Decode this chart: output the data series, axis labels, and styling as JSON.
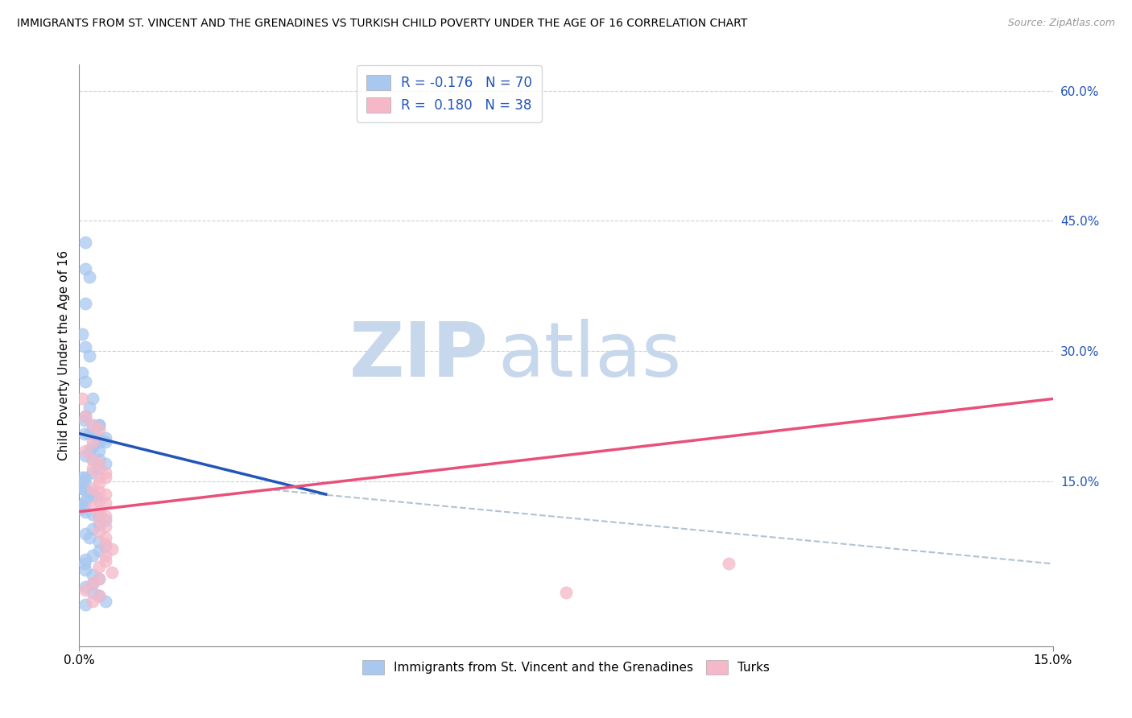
{
  "title": "IMMIGRANTS FROM ST. VINCENT AND THE GRENADINES VS TURKISH CHILD POVERTY UNDER THE AGE OF 16 CORRELATION CHART",
  "source": "Source: ZipAtlas.com",
  "ylabel": "Child Poverty Under the Age of 16",
  "xmin": 0.0,
  "xmax": 0.15,
  "ymin": -0.04,
  "ymax": 0.63,
  "ytick_labels_right": [
    "60.0%",
    "45.0%",
    "30.0%",
    "15.0%"
  ],
  "ytick_positions_right": [
    0.6,
    0.45,
    0.3,
    0.15
  ],
  "watermark_zip": "ZIP",
  "watermark_atlas": "atlas",
  "blue_color": "#A8C8F0",
  "pink_color": "#F5B8C8",
  "blue_line_color": "#2255BB",
  "pink_line_color": "#E8507A",
  "dashed_line_color": "#AABBCC",
  "blue_line": [
    [
      0.0,
      0.205
    ],
    [
      0.038,
      0.135
    ]
  ],
  "pink_line": [
    [
      0.0,
      0.115
    ],
    [
      0.15,
      0.245
    ]
  ],
  "dashed_line": [
    [
      0.03,
      0.14
    ],
    [
      0.15,
      0.055
    ]
  ],
  "blue_scatter": [
    [
      0.001,
      0.425
    ],
    [
      0.001,
      0.395
    ],
    [
      0.0015,
      0.385
    ],
    [
      0.001,
      0.355
    ],
    [
      0.0005,
      0.32
    ],
    [
      0.001,
      0.305
    ],
    [
      0.0015,
      0.295
    ],
    [
      0.0005,
      0.275
    ],
    [
      0.001,
      0.265
    ],
    [
      0.002,
      0.245
    ],
    [
      0.0015,
      0.235
    ],
    [
      0.001,
      0.225
    ],
    [
      0.0008,
      0.22
    ],
    [
      0.002,
      0.215
    ],
    [
      0.003,
      0.215
    ],
    [
      0.0015,
      0.205
    ],
    [
      0.002,
      0.205
    ],
    [
      0.003,
      0.215
    ],
    [
      0.0008,
      0.205
    ],
    [
      0.003,
      0.2
    ],
    [
      0.004,
      0.2
    ],
    [
      0.003,
      0.195
    ],
    [
      0.004,
      0.195
    ],
    [
      0.002,
      0.19
    ],
    [
      0.003,
      0.185
    ],
    [
      0.0015,
      0.185
    ],
    [
      0.001,
      0.18
    ],
    [
      0.002,
      0.175
    ],
    [
      0.003,
      0.175
    ],
    [
      0.004,
      0.17
    ],
    [
      0.003,
      0.165
    ],
    [
      0.002,
      0.16
    ],
    [
      0.001,
      0.155
    ],
    [
      0.0005,
      0.155
    ],
    [
      0.0008,
      0.15
    ],
    [
      0.0005,
      0.148
    ],
    [
      0.0003,
      0.145
    ],
    [
      0.0005,
      0.142
    ],
    [
      0.001,
      0.14
    ],
    [
      0.0015,
      0.138
    ],
    [
      0.002,
      0.135
    ],
    [
      0.0025,
      0.132
    ],
    [
      0.001,
      0.128
    ],
    [
      0.0008,
      0.125
    ],
    [
      0.0005,
      0.122
    ],
    [
      0.0003,
      0.12
    ],
    [
      0.0005,
      0.118
    ],
    [
      0.001,
      0.115
    ],
    [
      0.002,
      0.112
    ],
    [
      0.003,
      0.11
    ],
    [
      0.004,
      0.105
    ],
    [
      0.003,
      0.1
    ],
    [
      0.002,
      0.095
    ],
    [
      0.001,
      0.09
    ],
    [
      0.0015,
      0.085
    ],
    [
      0.003,
      0.08
    ],
    [
      0.004,
      0.075
    ],
    [
      0.003,
      0.07
    ],
    [
      0.002,
      0.065
    ],
    [
      0.001,
      0.06
    ],
    [
      0.0008,
      0.055
    ],
    [
      0.001,
      0.048
    ],
    [
      0.002,
      0.042
    ],
    [
      0.003,
      0.038
    ],
    [
      0.002,
      0.032
    ],
    [
      0.001,
      0.028
    ],
    [
      0.002,
      0.022
    ],
    [
      0.003,
      0.018
    ],
    [
      0.004,
      0.012
    ],
    [
      0.001,
      0.008
    ]
  ],
  "pink_scatter": [
    [
      0.0005,
      0.245
    ],
    [
      0.001,
      0.225
    ],
    [
      0.002,
      0.215
    ],
    [
      0.003,
      0.21
    ],
    [
      0.002,
      0.195
    ],
    [
      0.001,
      0.185
    ],
    [
      0.002,
      0.175
    ],
    [
      0.003,
      0.17
    ],
    [
      0.002,
      0.165
    ],
    [
      0.004,
      0.16
    ],
    [
      0.003,
      0.155
    ],
    [
      0.004,
      0.155
    ],
    [
      0.003,
      0.148
    ],
    [
      0.002,
      0.142
    ],
    [
      0.003,
      0.138
    ],
    [
      0.004,
      0.135
    ],
    [
      0.003,
      0.128
    ],
    [
      0.004,
      0.125
    ],
    [
      0.002,
      0.12
    ],
    [
      0.003,
      0.115
    ],
    [
      0.004,
      0.11
    ],
    [
      0.003,
      0.105
    ],
    [
      0.004,
      0.098
    ],
    [
      0.003,
      0.092
    ],
    [
      0.004,
      0.085
    ],
    [
      0.004,
      0.078
    ],
    [
      0.005,
      0.072
    ],
    [
      0.004,
      0.065
    ],
    [
      0.004,
      0.058
    ],
    [
      0.003,
      0.052
    ],
    [
      0.005,
      0.045
    ],
    [
      0.003,
      0.038
    ],
    [
      0.002,
      0.032
    ],
    [
      0.001,
      0.025
    ],
    [
      0.003,
      0.018
    ],
    [
      0.002,
      0.012
    ],
    [
      0.1,
      0.055
    ],
    [
      0.075,
      0.022
    ]
  ],
  "background_color": "#FFFFFF",
  "grid_color": "#C8D0D8"
}
